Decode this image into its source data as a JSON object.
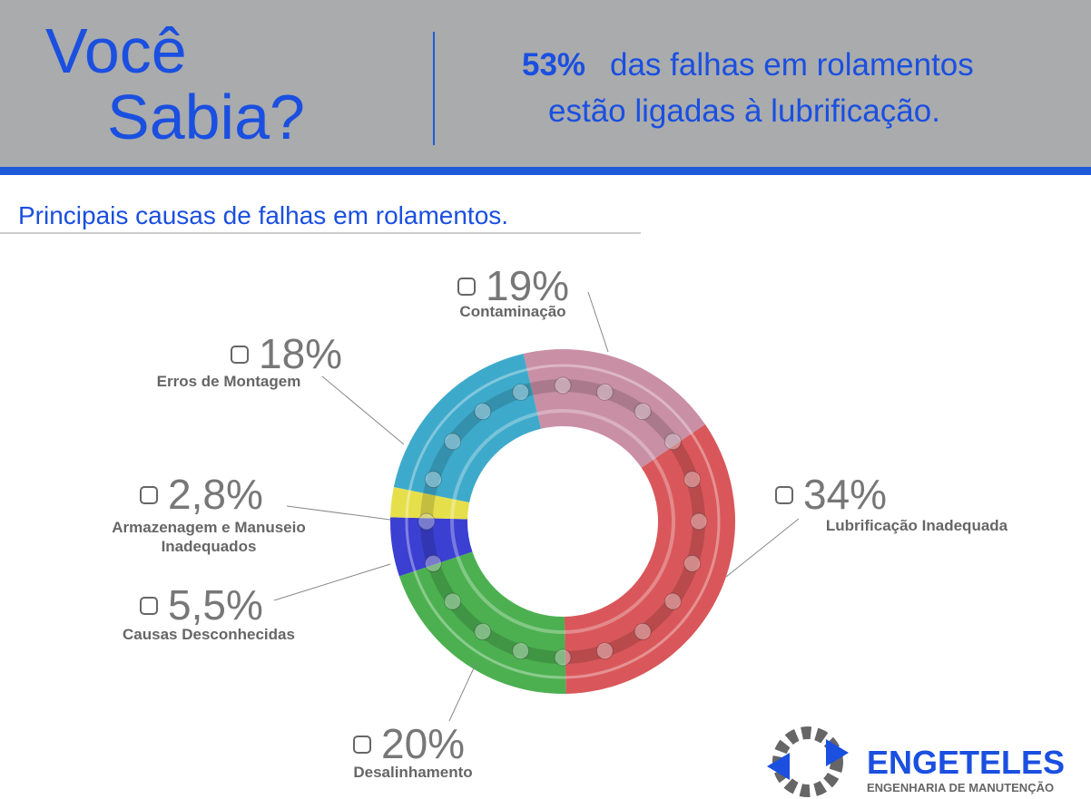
{
  "header": {
    "title_line1": "Você",
    "title_line2": "Sabia?",
    "highlight": "53%",
    "statement_line1": "das falhas em rolamentos",
    "statement_line2": "estão ligadas à lubrificação."
  },
  "chart_data": {
    "type": "donut",
    "title": "Principais causas de falhas em rolamentos.",
    "categories": [
      "Contaminação",
      "Lubrificação Inadequada",
      "Desalinhamento",
      "Causas Desconhecidas",
      "Armazenagem e Manuseio Inadequados",
      "Erros de Montagem"
    ],
    "values": [
      19,
      34,
      20,
      5.5,
      2.8,
      18
    ],
    "value_labels": [
      "19%",
      "34%",
      "20%",
      "5,5%",
      "2,8%",
      "18%"
    ],
    "colors": [
      "#c98fa5",
      "#d9575a",
      "#4cb050",
      "#3b40d2",
      "#e6df4c",
      "#3eaacb"
    ]
  },
  "logo": {
    "name": "ENGETELES",
    "tagline": "ENGENHARIA DE MANUTENÇÃO"
  }
}
